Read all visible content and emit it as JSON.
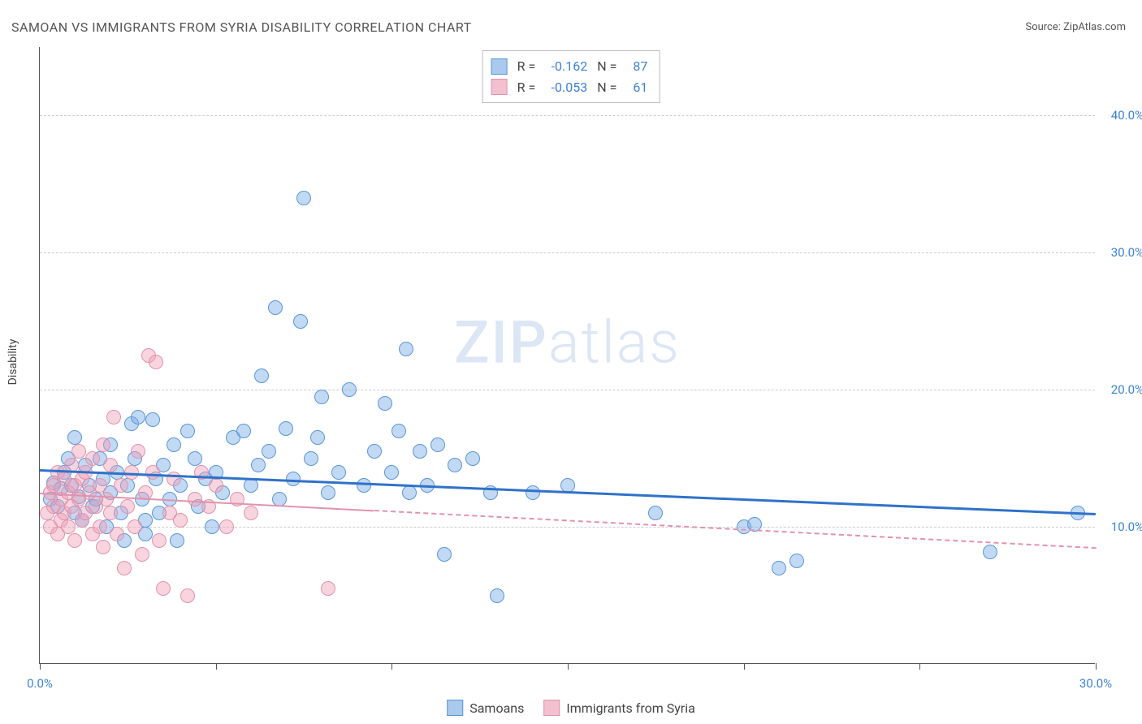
{
  "title": "SAMOAN VS IMMIGRANTS FROM SYRIA DISABILITY CORRELATION CHART",
  "source_label": "Source: ",
  "source_name": "ZipAtlas.com",
  "yaxis_title": "Disability",
  "watermark_bold": "ZIP",
  "watermark_light": "atlas",
  "chart": {
    "type": "scatter",
    "x_range": [
      0,
      30
    ],
    "y_range": [
      0,
      45
    ],
    "background_color": "#ffffff",
    "grid_color": "#cccccc",
    "grid_dashed": true,
    "y_gridlines": [
      10,
      20,
      30,
      40
    ],
    "y_tick_labels": [
      "10.0%",
      "20.0%",
      "30.0%",
      "40.0%"
    ],
    "x_ticks": [
      0,
      5,
      10,
      15,
      20,
      25,
      30
    ],
    "x_tick_labels_shown": {
      "0": "0.0%",
      "30": "30.0%"
    },
    "point_radius": 9,
    "point_border_width": 1,
    "series": [
      {
        "name": "Samoans",
        "fill_color": "rgba(120,170,230,0.45)",
        "border_color": "#5a96d6",
        "swatch_fill": "#a9c9ed",
        "swatch_border": "#5a96d6",
        "r": "-0.162",
        "n": "87",
        "trend": {
          "x1": 0,
          "y1": 14.2,
          "x2": 30,
          "y2": 11.0,
          "color": "#2f72c9",
          "width": 3,
          "dashed": false
        },
        "points": [
          [
            0.3,
            12.0
          ],
          [
            0.4,
            13.2
          ],
          [
            0.5,
            11.5
          ],
          [
            0.6,
            12.8
          ],
          [
            0.7,
            14.0
          ],
          [
            0.8,
            15.0
          ],
          [
            0.9,
            13.0
          ],
          [
            1.0,
            11.0
          ],
          [
            1.0,
            16.5
          ],
          [
            1.1,
            12.2
          ],
          [
            1.2,
            10.5
          ],
          [
            1.3,
            14.5
          ],
          [
            1.4,
            13.0
          ],
          [
            1.5,
            11.5
          ],
          [
            1.6,
            12.0
          ],
          [
            1.7,
            15.0
          ],
          [
            1.8,
            13.5
          ],
          [
            1.9,
            10.0
          ],
          [
            2.0,
            16.0
          ],
          [
            2.0,
            12.5
          ],
          [
            2.2,
            14.0
          ],
          [
            2.3,
            11.0
          ],
          [
            2.4,
            9.0
          ],
          [
            2.5,
            13.0
          ],
          [
            2.6,
            17.5
          ],
          [
            2.7,
            15.0
          ],
          [
            2.8,
            18.0
          ],
          [
            2.9,
            12.0
          ],
          [
            3.0,
            10.5
          ],
          [
            3.0,
            9.5
          ],
          [
            3.2,
            17.8
          ],
          [
            3.3,
            13.5
          ],
          [
            3.4,
            11.0
          ],
          [
            3.5,
            14.5
          ],
          [
            3.7,
            12.0
          ],
          [
            3.8,
            16.0
          ],
          [
            3.9,
            9.0
          ],
          [
            4.0,
            13.0
          ],
          [
            4.2,
            17.0
          ],
          [
            4.4,
            15.0
          ],
          [
            4.5,
            11.5
          ],
          [
            4.7,
            13.5
          ],
          [
            4.9,
            10.0
          ],
          [
            5.0,
            14.0
          ],
          [
            5.2,
            12.5
          ],
          [
            5.5,
            16.5
          ],
          [
            5.8,
            17.0
          ],
          [
            6.0,
            13.0
          ],
          [
            6.2,
            14.5
          ],
          [
            6.3,
            21.0
          ],
          [
            6.5,
            15.5
          ],
          [
            6.7,
            26.0
          ],
          [
            6.8,
            12.0
          ],
          [
            7.0,
            17.2
          ],
          [
            7.2,
            13.5
          ],
          [
            7.4,
            25.0
          ],
          [
            7.5,
            34.0
          ],
          [
            7.7,
            15.0
          ],
          [
            7.9,
            16.5
          ],
          [
            8.0,
            19.5
          ],
          [
            8.2,
            12.5
          ],
          [
            8.5,
            14.0
          ],
          [
            8.8,
            20.0
          ],
          [
            9.2,
            13.0
          ],
          [
            9.5,
            15.5
          ],
          [
            9.8,
            19.0
          ],
          [
            10.0,
            14.0
          ],
          [
            10.2,
            17.0
          ],
          [
            10.4,
            23.0
          ],
          [
            10.5,
            12.5
          ],
          [
            10.8,
            15.5
          ],
          [
            11.0,
            13.0
          ],
          [
            11.3,
            16.0
          ],
          [
            11.5,
            8.0
          ],
          [
            11.8,
            14.5
          ],
          [
            12.3,
            15.0
          ],
          [
            12.8,
            12.5
          ],
          [
            13.0,
            5.0
          ],
          [
            14.0,
            12.5
          ],
          [
            15.0,
            13.0
          ],
          [
            17.5,
            11.0
          ],
          [
            20.0,
            10.0
          ],
          [
            20.3,
            10.2
          ],
          [
            21.0,
            7.0
          ],
          [
            21.5,
            7.5
          ],
          [
            27.0,
            8.2
          ],
          [
            29.5,
            11.0
          ]
        ]
      },
      {
        "name": "Immigrants from Syria",
        "fill_color": "rgba(240,160,185,0.45)",
        "border_color": "#e193ac",
        "swatch_fill": "#f2c0ce",
        "swatch_border": "#e193ac",
        "r": "-0.053",
        "n": "61",
        "trend": {
          "x1": 0,
          "y1": 12.5,
          "x2": 30,
          "y2": 8.5,
          "color": "#e193ac",
          "width": 2,
          "dashed_after": 9.5
        },
        "points": [
          [
            0.2,
            11.0
          ],
          [
            0.3,
            12.5
          ],
          [
            0.3,
            10.0
          ],
          [
            0.4,
            13.0
          ],
          [
            0.4,
            11.5
          ],
          [
            0.5,
            9.5
          ],
          [
            0.5,
            14.0
          ],
          [
            0.6,
            12.0
          ],
          [
            0.6,
            10.5
          ],
          [
            0.7,
            13.5
          ],
          [
            0.7,
            11.0
          ],
          [
            0.8,
            12.5
          ],
          [
            0.8,
            10.0
          ],
          [
            0.9,
            14.5
          ],
          [
            0.9,
            11.5
          ],
          [
            1.0,
            13.0
          ],
          [
            1.0,
            9.0
          ],
          [
            1.1,
            12.0
          ],
          [
            1.1,
            15.5
          ],
          [
            1.2,
            10.5
          ],
          [
            1.2,
            13.5
          ],
          [
            1.3,
            11.0
          ],
          [
            1.3,
            14.0
          ],
          [
            1.4,
            12.5
          ],
          [
            1.5,
            9.5
          ],
          [
            1.5,
            15.0
          ],
          [
            1.6,
            11.5
          ],
          [
            1.7,
            13.0
          ],
          [
            1.7,
            10.0
          ],
          [
            1.8,
            16.0
          ],
          [
            1.8,
            8.5
          ],
          [
            1.9,
            12.0
          ],
          [
            2.0,
            14.5
          ],
          [
            2.0,
            11.0
          ],
          [
            2.1,
            18.0
          ],
          [
            2.2,
            9.5
          ],
          [
            2.3,
            13.0
          ],
          [
            2.4,
            7.0
          ],
          [
            2.5,
            11.5
          ],
          [
            2.6,
            14.0
          ],
          [
            2.7,
            10.0
          ],
          [
            2.8,
            15.5
          ],
          [
            2.9,
            8.0
          ],
          [
            3.0,
            12.5
          ],
          [
            3.1,
            22.5
          ],
          [
            3.2,
            14.0
          ],
          [
            3.3,
            22.0
          ],
          [
            3.4,
            9.0
          ],
          [
            3.5,
            5.5
          ],
          [
            3.7,
            11.0
          ],
          [
            3.8,
            13.5
          ],
          [
            4.0,
            10.5
          ],
          [
            4.2,
            5.0
          ],
          [
            4.4,
            12.0
          ],
          [
            4.6,
            14.0
          ],
          [
            4.8,
            11.5
          ],
          [
            5.0,
            13.0
          ],
          [
            5.3,
            10.0
          ],
          [
            5.6,
            12.0
          ],
          [
            6.0,
            11.0
          ],
          [
            8.2,
            5.5
          ]
        ]
      }
    ]
  },
  "legend_labels": {
    "R": "R =",
    "N": "N ="
  },
  "bottom_legend": [
    "Samoans",
    "Immigrants from Syria"
  ]
}
